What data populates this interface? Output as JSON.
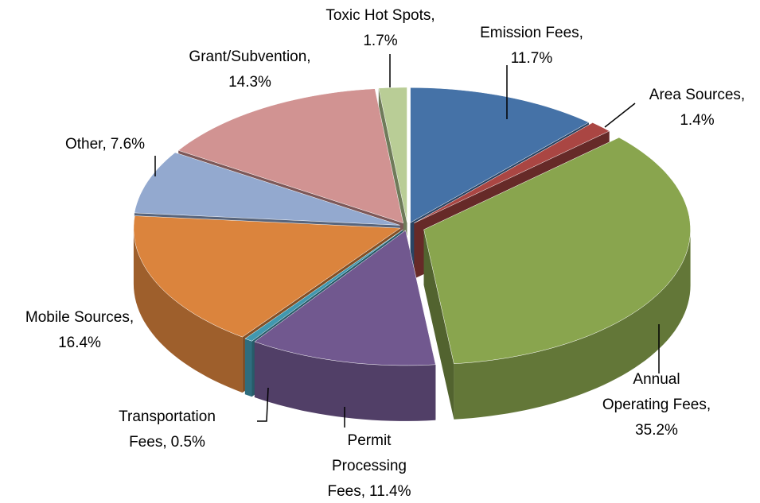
{
  "chart_data": {
    "type": "pie",
    "style": "3d-exploded",
    "categories": [
      "Emission Fees,",
      "Area Sources,",
      "Annual Operating Fees,",
      "Permit Processing Fees,",
      "Transportation Fees,",
      "Mobile Sources,",
      "Other,",
      "Grant/Subvention,",
      "Toxic Hot Spots,"
    ],
    "values": [
      11.7,
      1.4,
      35.2,
      11.4,
      0.5,
      16.4,
      7.6,
      14.3,
      1.7
    ],
    "value_labels": [
      "11.7%",
      "1.4%",
      "35.2%",
      "11.4%",
      "0.5%",
      "16.4%",
      "7.6%",
      "14.3%",
      "1.7%"
    ],
    "colors": [
      "#4572a7",
      "#aa4643",
      "#89a54e",
      "#71588f",
      "#4198af",
      "#db843d",
      "#93a9cf",
      "#d19392",
      "#b9cd96"
    ]
  }
}
